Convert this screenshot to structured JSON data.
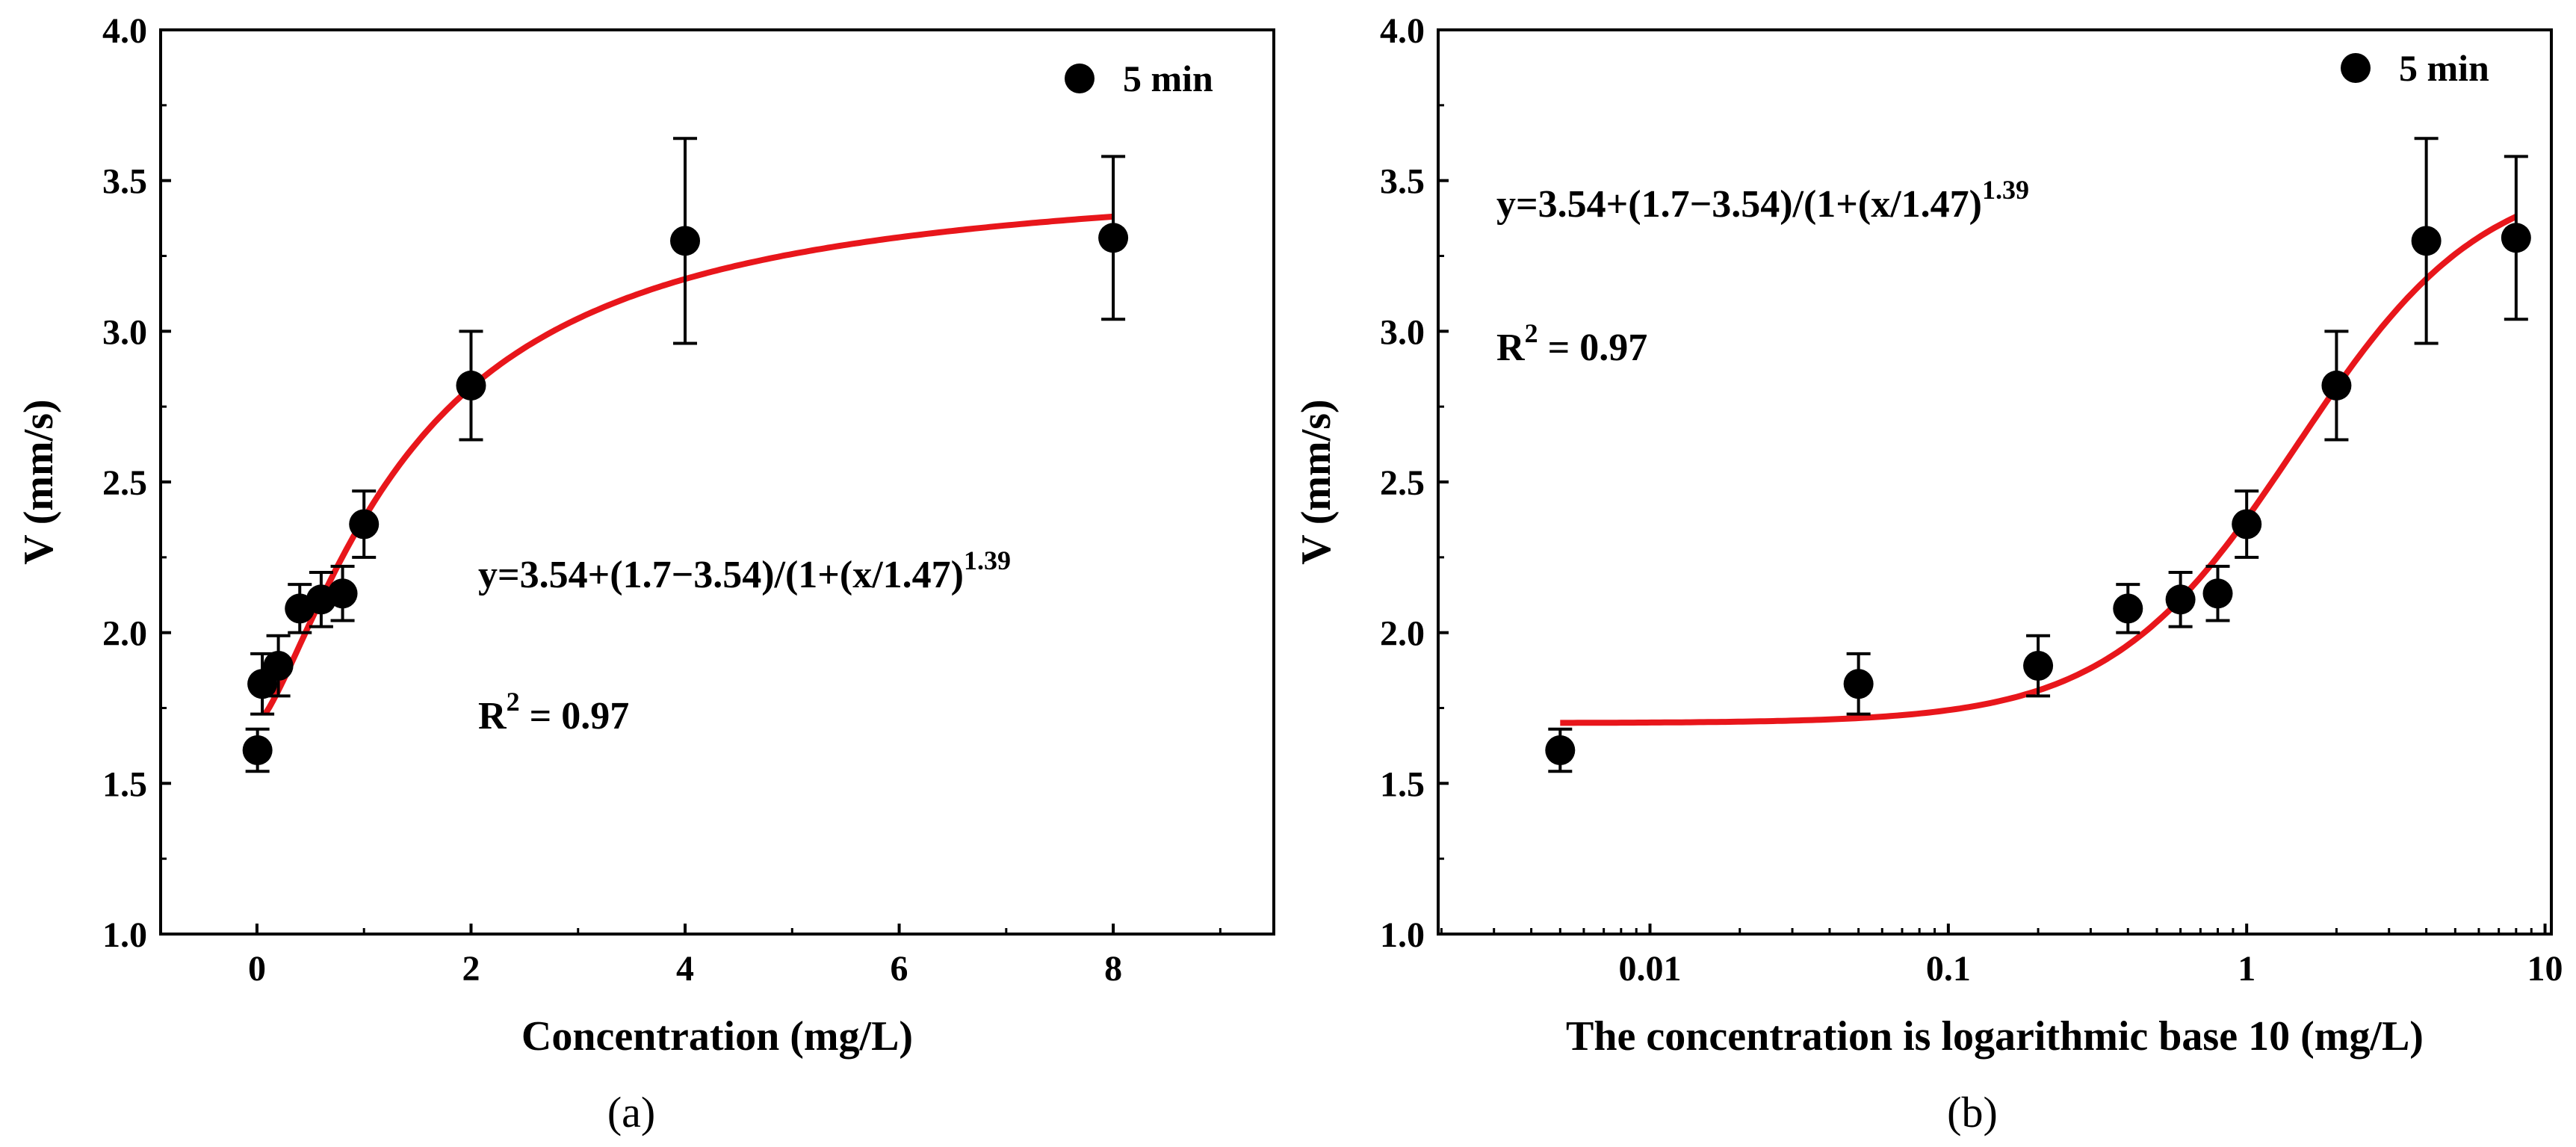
{
  "chart_data": [
    {
      "type": "scatter",
      "panel_label": "(a)",
      "xscale": "linear",
      "xlabel": "Concentration (mg/L)",
      "ylabel": "V (mm/s)",
      "xlim": [
        -0.9,
        9.5
      ],
      "ylim": [
        1.0,
        4.0
      ],
      "xticks": [
        0,
        2,
        4,
        6,
        8
      ],
      "xtick_labels": [
        "0",
        "2",
        "4",
        "6",
        "8"
      ],
      "yticks": [
        1.0,
        1.5,
        2.0,
        2.5,
        3.0,
        3.5,
        4.0
      ],
      "ytick_labels": [
        "1.0",
        "1.5",
        "2.0",
        "2.5",
        "3.0",
        "3.5",
        "4.0"
      ],
      "legend": {
        "label": "5 min",
        "position": "top-right"
      },
      "series": [
        {
          "name": "5 min",
          "x": [
            0.005,
            0.05,
            0.2,
            0.4,
            0.6,
            0.8,
            1,
            2,
            4,
            8
          ],
          "y": [
            1.61,
            1.83,
            1.89,
            2.08,
            2.11,
            2.13,
            2.36,
            2.82,
            3.3,
            3.31
          ],
          "yerr": [
            0.07,
            0.1,
            0.1,
            0.08,
            0.09,
            0.09,
            0.11,
            0.18,
            0.34,
            0.27
          ]
        }
      ],
      "fit": {
        "A1": 1.7,
        "A2": 3.54,
        "x0": 1.47,
        "p": 1.39,
        "x_range": [
          0.005,
          8
        ],
        "color": "#e8161b"
      },
      "equation": {
        "prefix": "y=3.54+(1.7−3.54)/(1+(x/1.47)",
        "superscript": "1.39"
      },
      "r2": {
        "prefix": "R",
        "superscript": "2",
        "suffix": " = 0.97"
      }
    },
    {
      "type": "scatter",
      "panel_label": "(b)",
      "xscale": "log",
      "xlabel": "The concentration is logarithmic base 10 (mg/L)",
      "ylabel": "V (mm/s)",
      "xlim": [
        0.00195,
        10.5
      ],
      "ylim": [
        1.0,
        4.0
      ],
      "xticks": [
        0.01,
        0.1,
        1,
        10
      ],
      "xtick_labels": [
        "0.01",
        "0.1",
        "1",
        "10"
      ],
      "yticks": [
        1.0,
        1.5,
        2.0,
        2.5,
        3.0,
        3.5,
        4.0
      ],
      "ytick_labels": [
        "1.0",
        "1.5",
        "2.0",
        "2.5",
        "3.0",
        "3.5",
        "4.0"
      ],
      "legend": {
        "label": "5 min",
        "position": "top-right"
      },
      "series": [
        {
          "name": "5 min",
          "x": [
            0.005,
            0.05,
            0.2,
            0.4,
            0.6,
            0.8,
            1,
            2,
            4,
            8
          ],
          "y": [
            1.61,
            1.83,
            1.89,
            2.08,
            2.11,
            2.13,
            2.36,
            2.82,
            3.3,
            3.31
          ],
          "yerr": [
            0.07,
            0.1,
            0.1,
            0.08,
            0.09,
            0.09,
            0.11,
            0.18,
            0.34,
            0.27
          ]
        }
      ],
      "fit": {
        "A1": 1.7,
        "A2": 3.54,
        "x0": 1.47,
        "p": 1.39,
        "x_range": [
          0.005,
          8
        ],
        "color": "#e8161b"
      },
      "equation": {
        "prefix": "y=3.54+(1.7−3.54)/(1+(x/1.47)",
        "superscript": "1.39"
      },
      "r2": {
        "prefix": "R",
        "superscript": "2",
        "suffix": " = 0.97"
      }
    }
  ]
}
